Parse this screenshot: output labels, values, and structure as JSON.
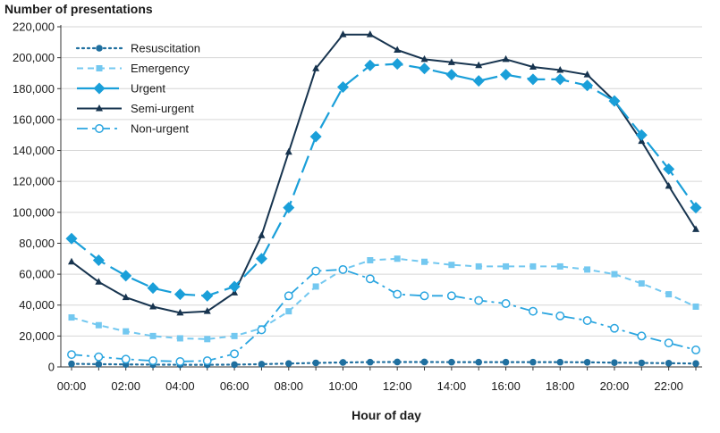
{
  "chart_data": {
    "type": "line",
    "title": "",
    "ylabel": "Number of presentations",
    "xlabel": "Hour of day",
    "ylim": [
      0,
      220000
    ],
    "y_ticks": [
      0,
      20000,
      40000,
      60000,
      80000,
      100000,
      120000,
      140000,
      160000,
      180000,
      200000,
      220000
    ],
    "y_tick_labels": [
      "0",
      "20,000",
      "40,000",
      "60,000",
      "80,000",
      "100,000",
      "120,000",
      "140,000",
      "160,000",
      "180,000",
      "200,000",
      "220,000"
    ],
    "categories": [
      "00:00",
      "01:00",
      "02:00",
      "03:00",
      "04:00",
      "05:00",
      "06:00",
      "07:00",
      "08:00",
      "09:00",
      "10:00",
      "11:00",
      "12:00",
      "13:00",
      "14:00",
      "15:00",
      "16:00",
      "17:00",
      "18:00",
      "19:00",
      "20:00",
      "21:00",
      "22:00",
      "23:00"
    ],
    "x_tick_labels": [
      "00:00",
      "02:00",
      "04:00",
      "06:00",
      "08:00",
      "10:00",
      "12:00",
      "14:00",
      "16:00",
      "18:00",
      "20:00",
      "22:00"
    ],
    "grid": true,
    "legend_position": "top-left",
    "series": [
      {
        "name": "Resuscitation",
        "color": "#1f6f9f",
        "dash": "dotted",
        "marker": "circle-filled",
        "values": [
          2000,
          1800,
          1600,
          1500,
          1400,
          1400,
          1500,
          1800,
          2200,
          2600,
          2900,
          3100,
          3200,
          3200,
          3100,
          3100,
          3100,
          3100,
          3100,
          3000,
          2800,
          2600,
          2400,
          2200
        ]
      },
      {
        "name": "Emergency",
        "color": "#73c8f0",
        "dash": "dashed-short",
        "marker": "square",
        "values": [
          32000,
          27000,
          23000,
          20000,
          18500,
          18000,
          20000,
          25000,
          36000,
          52000,
          63000,
          69000,
          70000,
          68000,
          66000,
          65000,
          65000,
          65000,
          65000,
          63000,
          60000,
          54000,
          47000,
          39000
        ]
      },
      {
        "name": "Urgent",
        "color": "#1a9fd9",
        "dash": "dashed-long",
        "marker": "diamond",
        "values": [
          83000,
          69000,
          59000,
          51000,
          47000,
          46000,
          52000,
          70000,
          103000,
          149000,
          181000,
          195000,
          196000,
          193000,
          189000,
          185000,
          189000,
          186000,
          186000,
          182000,
          172000,
          150000,
          128000,
          103000
        ]
      },
      {
        "name": "Semi-urgent",
        "color": "#17344f",
        "dash": "solid",
        "marker": "triangle",
        "values": [
          68000,
          55000,
          45000,
          39000,
          35000,
          36000,
          48000,
          85000,
          139000,
          193000,
          215000,
          215000,
          205000,
          199000,
          197000,
          195000,
          199000,
          194000,
          192000,
          189000,
          172000,
          146000,
          117000,
          89000
        ]
      },
      {
        "name": "Non-urgent",
        "color": "#2aa5e0",
        "dash": "dash-dot",
        "marker": "circle-open",
        "values": [
          8000,
          6500,
          5000,
          4000,
          3500,
          4000,
          8500,
          24000,
          46000,
          62000,
          63000,
          57000,
          47000,
          46000,
          46000,
          43000,
          41000,
          36000,
          33000,
          30000,
          25000,
          20000,
          15500,
          11000
        ]
      }
    ]
  }
}
